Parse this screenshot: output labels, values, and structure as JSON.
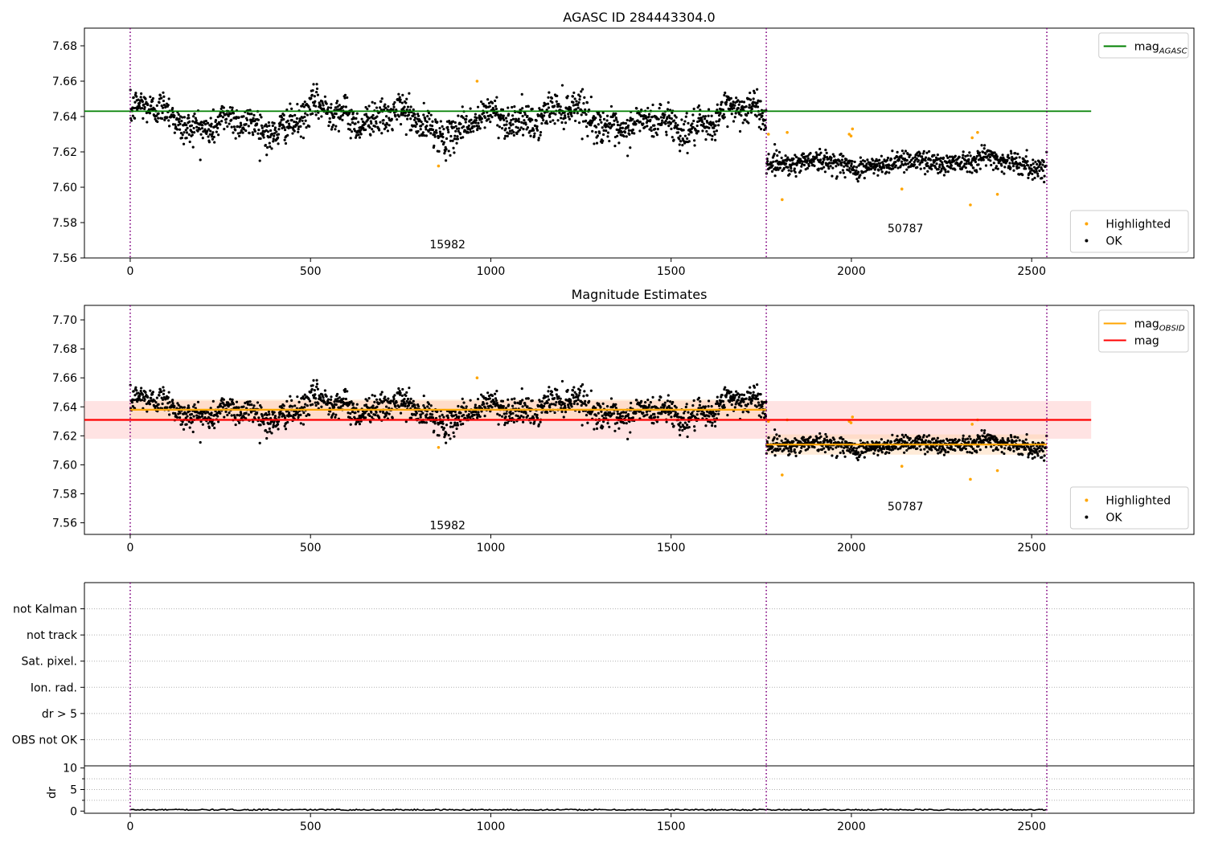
{
  "chart_data": [
    {
      "id": "panel1",
      "type": "scatter",
      "title": "AGASC ID 284443304.0",
      "xlim": [
        -127,
        2950
      ],
      "ylim": [
        7.56,
        7.69
      ],
      "xticks": [
        0,
        500,
        1000,
        1500,
        2000,
        2500
      ],
      "yticks": [
        7.56,
        7.58,
        7.6,
        7.62,
        7.64,
        7.66,
        7.68
      ],
      "vlines": [
        0,
        1764,
        2542
      ],
      "annotations": [
        {
          "text": "15982",
          "x": 880,
          "y": 7.5655
        },
        {
          "text": "50787",
          "x": 2150,
          "y": 7.5745
        }
      ],
      "lines": [
        {
          "name": "mag",
          "sub": "AGASC",
          "color": "#008000",
          "y": 7.643,
          "x": [
            -127,
            2665
          ]
        }
      ],
      "segments": [
        {
          "x": [
            0,
            1764
          ],
          "mean": 7.638,
          "sd": 0.0085,
          "amp": 0.008
        },
        {
          "x": [
            1764,
            2542
          ],
          "mean": 7.614,
          "sd": 0.0055,
          "amp": 0.003
        }
      ],
      "highlighted": [
        {
          "x": 855,
          "y": 7.612
        },
        {
          "x": 962,
          "y": 7.66
        },
        {
          "x": 1770,
          "y": 7.63
        },
        {
          "x": 1808,
          "y": 7.593
        },
        {
          "x": 1822,
          "y": 7.631
        },
        {
          "x": 1994,
          "y": 7.63
        },
        {
          "x": 2003,
          "y": 7.633
        },
        {
          "x": 1999,
          "y": 7.629
        },
        {
          "x": 2140,
          "y": 7.599
        },
        {
          "x": 2330,
          "y": 7.59
        },
        {
          "x": 2335,
          "y": 7.628
        },
        {
          "x": 2350,
          "y": 7.631
        },
        {
          "x": 2405,
          "y": 7.596
        }
      ],
      "legends": [
        {
          "position": "top-right",
          "items": [
            {
              "kind": "line",
              "color": "#008000",
              "label": "mag",
              "sub": "AGASC"
            }
          ]
        },
        {
          "position": "bottom-right",
          "items": [
            {
              "kind": "dot",
              "color": "#ffa500",
              "label": "Highlighted"
            },
            {
              "kind": "dot",
              "color": "#000000",
              "label": "OK"
            }
          ]
        }
      ]
    },
    {
      "id": "panel2",
      "type": "scatter",
      "title": "Magnitude Estimates",
      "xlim": [
        -127,
        2950
      ],
      "ylim": [
        7.552,
        7.71
      ],
      "xticks": [
        0,
        500,
        1000,
        1500,
        2000,
        2500
      ],
      "yticks": [
        7.56,
        7.58,
        7.6,
        7.62,
        7.64,
        7.66,
        7.68,
        7.7
      ],
      "vlines": [
        0,
        1764,
        2542
      ],
      "annotations": [
        {
          "text": "15982",
          "x": 880,
          "y": 7.5555
        },
        {
          "text": "50787",
          "x": 2150,
          "y": 7.5685
        }
      ],
      "bands": [
        {
          "x": [
            -127,
            2665
          ],
          "y": [
            7.618,
            7.644
          ],
          "color": "#ffb0b0",
          "opacity": 0.35
        },
        {
          "x": [
            0,
            1764
          ],
          "y": [
            7.631,
            7.645
          ],
          "color": "#ffd2a8",
          "opacity": 0.45
        },
        {
          "x": [
            1764,
            2542
          ],
          "y": [
            7.607,
            7.621
          ],
          "color": "#ffd2a8",
          "opacity": 0.45
        }
      ],
      "lines": [
        {
          "name": "mag",
          "color": "#ff0000",
          "y": 7.631,
          "x": [
            -127,
            2665
          ]
        },
        {
          "name": "mag",
          "sub": "OBSID",
          "color": "#ffa500",
          "y": 7.638,
          "x": [
            0,
            1764
          ]
        },
        {
          "name": "mag",
          "sub": "OBSID",
          "color": "#ffa500",
          "y": 7.614,
          "x": [
            1764,
            2542
          ]
        }
      ],
      "segments": [
        {
          "x": [
            0,
            1764
          ],
          "mean": 7.638,
          "sd": 0.0085,
          "amp": 0.008
        },
        {
          "x": [
            1764,
            2542
          ],
          "mean": 7.614,
          "sd": 0.0055,
          "amp": 0.003
        }
      ],
      "highlighted": [
        {
          "x": 855,
          "y": 7.612
        },
        {
          "x": 962,
          "y": 7.66
        },
        {
          "x": 1770,
          "y": 7.63
        },
        {
          "x": 1808,
          "y": 7.593
        },
        {
          "x": 1822,
          "y": 7.631
        },
        {
          "x": 1994,
          "y": 7.63
        },
        {
          "x": 2003,
          "y": 7.633
        },
        {
          "x": 1999,
          "y": 7.629
        },
        {
          "x": 2140,
          "y": 7.599
        },
        {
          "x": 2330,
          "y": 7.59
        },
        {
          "x": 2335,
          "y": 7.628
        },
        {
          "x": 2350,
          "y": 7.631
        },
        {
          "x": 2405,
          "y": 7.596
        }
      ],
      "legends": [
        {
          "position": "top-right",
          "items": [
            {
              "kind": "line",
              "color": "#ffa500",
              "label": "mag",
              "sub": "OBSID"
            },
            {
              "kind": "line",
              "color": "#ff0000",
              "label": "mag",
              "sub": ""
            }
          ]
        },
        {
          "position": "bottom-right",
          "items": [
            {
              "kind": "dot",
              "color": "#ffa500",
              "label": "Highlighted"
            },
            {
              "kind": "dot",
              "color": "#000000",
              "label": "OK"
            }
          ]
        }
      ]
    },
    {
      "id": "panel3",
      "type": "scatter",
      "title": "",
      "xlim": [
        -127,
        2950
      ],
      "ylim": [
        -0.5,
        6.5
      ],
      "categories": [
        "OBS not OK",
        "dr > 5",
        "Ion. rad.",
        "Sat. pixel.",
        "not track",
        "not Kalman"
      ],
      "grid": true,
      "vlines": [
        0,
        1764,
        2542
      ]
    },
    {
      "id": "panel4",
      "type": "line",
      "title": "",
      "ylabel": "dr",
      "xlim": [
        -127,
        2950
      ],
      "ylim": [
        -0.5,
        10.5
      ],
      "xticks": [
        0,
        500,
        1000,
        1500,
        2000,
        2500
      ],
      "yticks": [
        0,
        5,
        10
      ],
      "grid": true,
      "vlines": [
        0,
        1764,
        2542
      ],
      "series": [
        {
          "x": [
            0,
            2542
          ],
          "mean": 0.3,
          "amp": 0.15
        }
      ]
    }
  ]
}
